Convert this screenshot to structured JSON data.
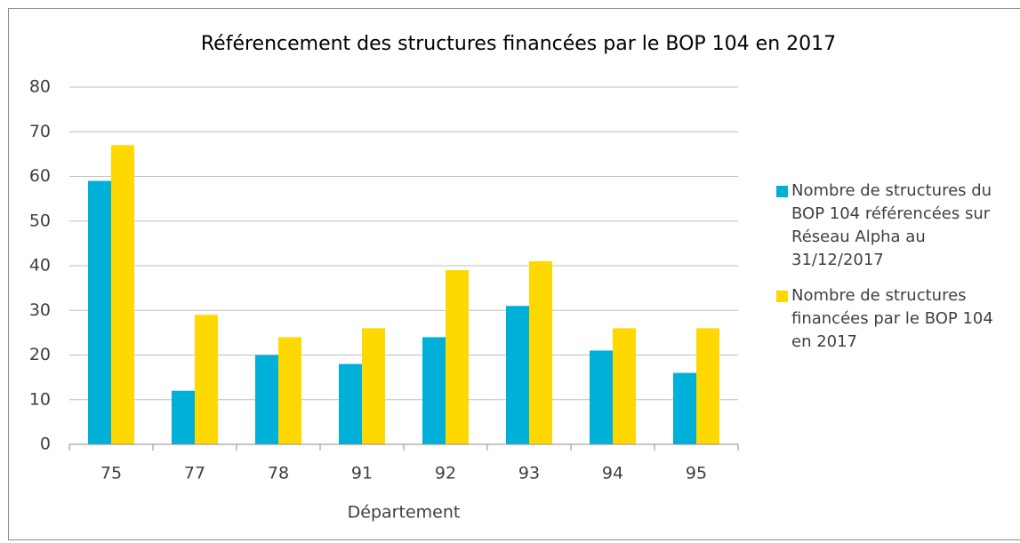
{
  "chart_data": {
    "type": "bar",
    "title": "Référencement des structures financées par le BOP 104 en 2017",
    "x_label": "Département",
    "categories": [
      "75",
      "77",
      "78",
      "91",
      "92",
      "93",
      "94",
      "95"
    ],
    "series": [
      {
        "name": "Nombre de structures du BOP 104 référencées sur Réseau Alpha au 31/12/2017",
        "color": "#00b0d8",
        "values": [
          59,
          12,
          20,
          18,
          24,
          31,
          21,
          16
        ]
      },
      {
        "name": "Nombre de structures financées par le BOP 104 en 2017",
        "color": "#ffd800",
        "values": [
          67,
          29,
          24,
          26,
          39,
          41,
          26,
          26
        ]
      }
    ],
    "ylim": [
      0,
      80
    ],
    "yticks": [
      0,
      10,
      20,
      30,
      40,
      50,
      60,
      70,
      80
    ],
    "grid": true,
    "legend": "right"
  }
}
